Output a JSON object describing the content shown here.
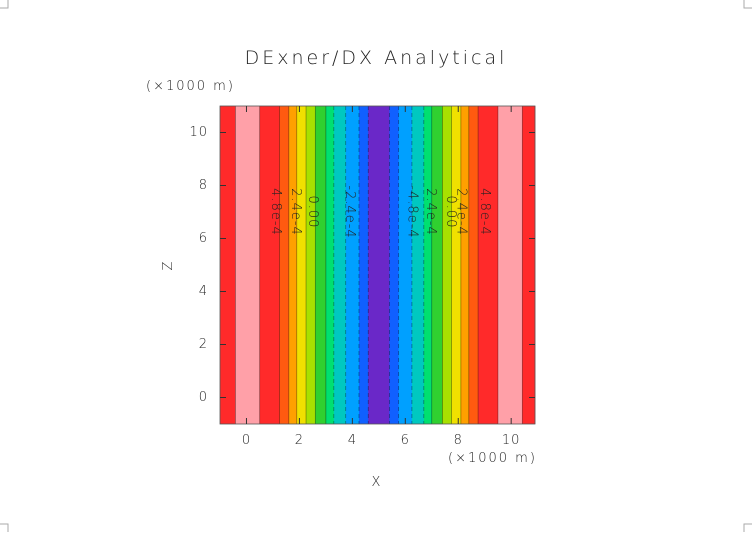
{
  "chart_data": {
    "type": "filled_contour",
    "title": "DExner/DX Analytical",
    "x_label": "X",
    "y_label": "Z",
    "x_unit": "(×1000 m)",
    "y_unit": "(×1000 m)",
    "xlim": [
      -1,
      10.9
    ],
    "ylim": [
      -1,
      11
    ],
    "xticks": [
      0,
      2,
      4,
      6,
      8,
      10
    ],
    "yticks": [
      0,
      2,
      4,
      6,
      8,
      10
    ],
    "x_edges": [
      -1,
      -0.42,
      0.5,
      1.25,
      1.6,
      1.9,
      2.25,
      2.6,
      3.0,
      3.3,
      3.75,
      4.25,
      4.6,
      5.4,
      5.75,
      6.25,
      6.7,
      7.0,
      7.4,
      7.75,
      8.1,
      8.4,
      8.75,
      9.5,
      10.42,
      10.9
    ],
    "colors": [
      "#ff2a2a",
      "#ffa0a8",
      "#ff2a2a",
      "#ff5a10",
      "#ffa000",
      "#f0e000",
      "#a8e000",
      "#30d030",
      "#00e070",
      "#00c8c0",
      "#00a0ff",
      "#1060ff",
      "#6a28c8",
      "#1060ff",
      "#00a0ff",
      "#00c8c0",
      "#00e070",
      "#30d030",
      "#a8e000",
      "#f0e000",
      "#ffa000",
      "#ff5a10",
      "#ff2a2a",
      "#ffa0a8",
      "#ff2a2a"
    ],
    "contour_labels": [
      {
        "x": 1.1,
        "y": 7,
        "label": "4.8e-4"
      },
      {
        "x": 1.85,
        "y": 7,
        "label": "2.4e-4"
      },
      {
        "x": 2.5,
        "y": 7,
        "label": "0.00"
      },
      {
        "x": 3.9,
        "y": 7,
        "label": "-2.4e-4"
      },
      {
        "x": 6.25,
        "y": 7,
        "label": "-4.8e-4"
      },
      {
        "x": 6.95,
        "y": 7,
        "label": "2.4e-4"
      },
      {
        "x": 7.7,
        "y": 7,
        "label": "0.00"
      },
      {
        "x": 8.1,
        "y": 7,
        "label": "2.4e-4"
      },
      {
        "x": 9.0,
        "y": 7,
        "label": "4.8e-4"
      }
    ]
  }
}
